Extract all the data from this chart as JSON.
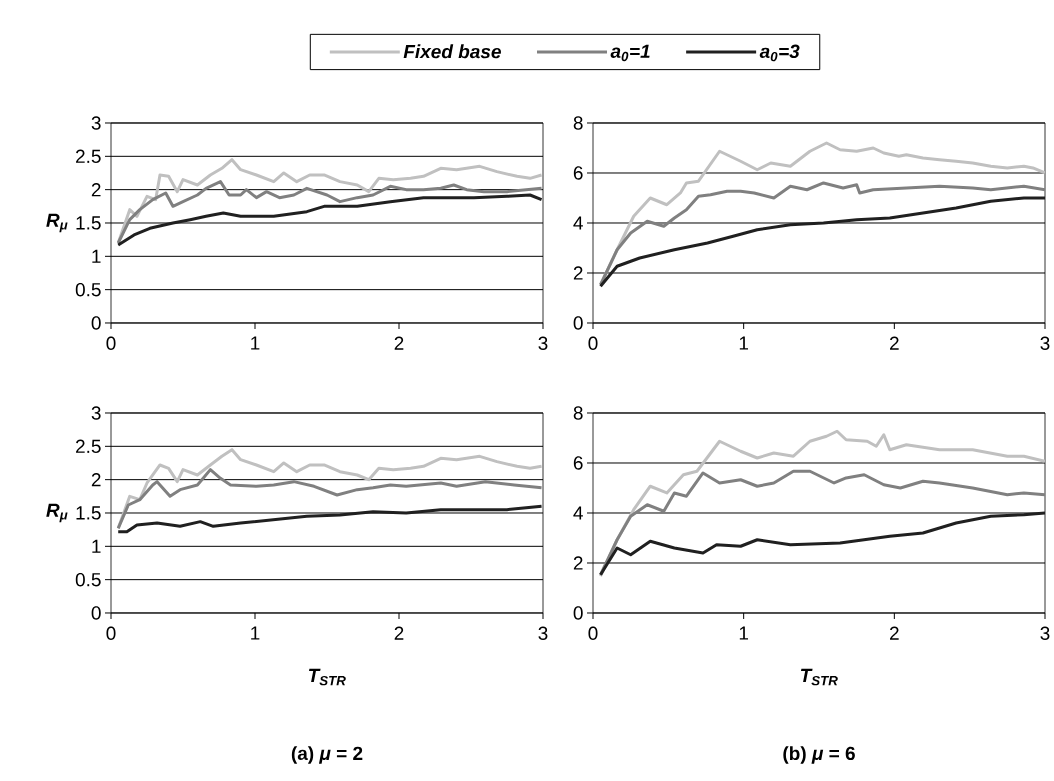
{
  "chart_data": [
    {
      "type": "line",
      "ylabel": "R$_{μ}$",
      "xlim": [
        0,
        3
      ],
      "ylim": [
        0,
        3
      ],
      "xticks": [
        0,
        1,
        2,
        3
      ],
      "yticks": [
        0,
        0.5,
        1,
        1.5,
        2,
        2.5,
        3
      ],
      "grid": "y",
      "legend": "top",
      "series": [
        {
          "name": "Fixed base",
          "color": "#c0c0c0",
          "x": [
            0.05,
            0.13,
            0.18,
            0.25,
            0.31,
            0.34,
            0.4,
            0.46,
            0.5,
            0.6,
            0.69,
            0.77,
            0.84,
            0.9,
            1.01,
            1.13,
            1.2,
            1.29,
            1.38,
            1.48,
            1.59,
            1.71,
            1.79,
            1.86,
            1.96,
            2.08,
            2.17,
            2.29,
            2.4,
            2.56,
            2.68,
            2.82,
            2.91,
            2.99
          ],
          "values": [
            1.2,
            1.7,
            1.6,
            1.9,
            1.85,
            2.22,
            2.2,
            1.97,
            2.15,
            2.07,
            2.22,
            2.32,
            2.45,
            2.3,
            2.22,
            2.12,
            2.25,
            2.12,
            2.22,
            2.22,
            2.12,
            2.07,
            1.97,
            2.17,
            2.15,
            2.17,
            2.2,
            2.32,
            2.3,
            2.35,
            2.27,
            2.2,
            2.17,
            2.22
          ]
        },
        {
          "name": "a$_{0}$=1",
          "color": "#808080",
          "x": [
            0.05,
            0.13,
            0.2,
            0.29,
            0.38,
            0.43,
            0.5,
            0.6,
            0.66,
            0.76,
            0.82,
            0.9,
            0.94,
            1.01,
            1.08,
            1.17,
            1.27,
            1.36,
            1.5,
            1.59,
            1.71,
            1.82,
            1.94,
            2.05,
            2.17,
            2.29,
            2.38,
            2.47,
            2.59,
            2.75,
            2.99
          ],
          "values": [
            1.2,
            1.55,
            1.7,
            1.85,
            1.95,
            1.75,
            1.82,
            1.92,
            2.02,
            2.12,
            1.92,
            1.92,
            2.0,
            1.88,
            1.97,
            1.88,
            1.92,
            2.02,
            1.92,
            1.82,
            1.88,
            1.92,
            2.05,
            2.0,
            2.0,
            2.02,
            2.07,
            2.0,
            1.97,
            1.97,
            2.02
          ]
        },
        {
          "name": "a$_{0}$=3",
          "color": "#202020",
          "x": [
            0.05,
            0.16,
            0.27,
            0.43,
            0.55,
            0.66,
            0.78,
            0.9,
            1.13,
            1.36,
            1.48,
            1.71,
            1.94,
            2.17,
            2.52,
            2.75,
            2.91,
            2.99
          ],
          "values": [
            1.17,
            1.32,
            1.42,
            1.5,
            1.55,
            1.6,
            1.65,
            1.6,
            1.6,
            1.67,
            1.75,
            1.75,
            1.82,
            1.88,
            1.88,
            1.9,
            1.92,
            1.85
          ]
        }
      ]
    },
    {
      "type": "line",
      "xlim": [
        0,
        3
      ],
      "ylim": [
        0,
        8
      ],
      "xticks": [
        0,
        1,
        2,
        3
      ],
      "yticks": [
        0,
        2,
        4,
        6,
        8
      ],
      "grid": "y",
      "series": [
        {
          "color": "#c0c0c0",
          "x": [
            0.05,
            0.16,
            0.27,
            0.38,
            0.49,
            0.58,
            0.62,
            0.7,
            0.84,
            0.98,
            1.09,
            1.18,
            1.31,
            1.44,
            1.55,
            1.64,
            1.75,
            1.86,
            1.93,
            2.03,
            2.08,
            2.19,
            2.3,
            2.41,
            2.52,
            2.64,
            2.75,
            2.86,
            2.92,
            3.0
          ],
          "values": [
            1.53,
            2.93,
            4.27,
            5.0,
            4.73,
            5.2,
            5.6,
            5.67,
            6.87,
            6.47,
            6.13,
            6.4,
            6.27,
            6.87,
            7.2,
            6.93,
            6.87,
            7.0,
            6.8,
            6.67,
            6.73,
            6.6,
            6.53,
            6.47,
            6.4,
            6.27,
            6.2,
            6.27,
            6.2,
            6.0
          ]
        },
        {
          "color": "#808080",
          "x": [
            0.05,
            0.16,
            0.25,
            0.36,
            0.47,
            0.54,
            0.62,
            0.7,
            0.78,
            0.89,
            0.98,
            1.07,
            1.2,
            1.31,
            1.42,
            1.53,
            1.66,
            1.75,
            1.77,
            1.86,
            2.08,
            2.3,
            2.52,
            2.64,
            2.86,
            3.0
          ],
          "values": [
            1.53,
            2.93,
            3.6,
            4.07,
            3.87,
            4.2,
            4.53,
            5.07,
            5.13,
            5.27,
            5.27,
            5.2,
            5.0,
            5.47,
            5.33,
            5.6,
            5.4,
            5.53,
            5.2,
            5.33,
            5.4,
            5.47,
            5.4,
            5.33,
            5.47,
            5.33
          ]
        },
        {
          "color": "#202020",
          "x": [
            0.05,
            0.16,
            0.31,
            0.54,
            0.76,
            0.93,
            1.09,
            1.31,
            1.53,
            1.75,
            1.97,
            2.19,
            2.41,
            2.64,
            2.86,
            3.0
          ],
          "values": [
            1.47,
            2.27,
            2.6,
            2.93,
            3.2,
            3.47,
            3.73,
            3.93,
            4.0,
            4.13,
            4.2,
            4.4,
            4.6,
            4.87,
            5.0,
            5.0
          ]
        }
      ]
    },
    {
      "type": "line",
      "ylabel": "R$_{μ}$",
      "xlabel": "T$_{STR}$",
      "annotations": [
        "(a) *μ* = 2"
      ],
      "xlim": [
        0,
        3
      ],
      "ylim": [
        0,
        3
      ],
      "xticks": [
        0,
        1,
        2,
        3
      ],
      "yticks": [
        0,
        0.5,
        1,
        1.5,
        2,
        2.5,
        3
      ],
      "grid": "y",
      "series": [
        {
          "color": "#c0c0c0",
          "x": [
            0.05,
            0.13,
            0.2,
            0.25,
            0.34,
            0.4,
            0.46,
            0.5,
            0.6,
            0.69,
            0.77,
            0.84,
            0.9,
            1.01,
            1.13,
            1.2,
            1.29,
            1.38,
            1.48,
            1.59,
            1.71,
            1.79,
            1.86,
            1.96,
            2.08,
            2.17,
            2.29,
            2.4,
            2.56,
            2.68,
            2.82,
            2.91,
            2.99
          ],
          "values": [
            1.27,
            1.75,
            1.7,
            1.95,
            2.22,
            2.17,
            1.97,
            2.15,
            2.07,
            2.22,
            2.35,
            2.45,
            2.3,
            2.22,
            2.12,
            2.25,
            2.12,
            2.22,
            2.22,
            2.12,
            2.07,
            2.0,
            2.17,
            2.15,
            2.17,
            2.2,
            2.32,
            2.3,
            2.35,
            2.27,
            2.2,
            2.17,
            2.2
          ]
        },
        {
          "color": "#808080",
          "x": [
            0.05,
            0.12,
            0.2,
            0.29,
            0.32,
            0.41,
            0.48,
            0.6,
            0.64,
            0.69,
            0.76,
            0.83,
            1.01,
            1.13,
            1.27,
            1.41,
            1.57,
            1.71,
            1.82,
            1.94,
            2.05,
            2.29,
            2.4,
            2.6,
            2.8,
            2.99
          ],
          "values": [
            1.27,
            1.62,
            1.7,
            1.92,
            1.97,
            1.75,
            1.85,
            1.92,
            2.02,
            2.15,
            2.02,
            1.92,
            1.9,
            1.92,
            1.97,
            1.9,
            1.77,
            1.85,
            1.88,
            1.92,
            1.9,
            1.95,
            1.9,
            1.97,
            1.92,
            1.88
          ]
        },
        {
          "color": "#202020",
          "x": [
            0.05,
            0.11,
            0.18,
            0.32,
            0.48,
            0.62,
            0.71,
            0.9,
            1.13,
            1.36,
            1.59,
            1.82,
            2.05,
            2.29,
            2.52,
            2.75,
            2.99
          ],
          "values": [
            1.22,
            1.22,
            1.32,
            1.35,
            1.3,
            1.37,
            1.3,
            1.35,
            1.4,
            1.45,
            1.47,
            1.52,
            1.5,
            1.55,
            1.55,
            1.55,
            1.6
          ]
        }
      ]
    },
    {
      "type": "line",
      "xlabel": "T$_{STR}$",
      "annotations": [
        "(b) *μ* = 6"
      ],
      "xlim": [
        0,
        3
      ],
      "ylim": [
        0,
        8
      ],
      "xticks": [
        0,
        1,
        2,
        3
      ],
      "yticks": [
        0,
        2,
        4,
        6,
        8
      ],
      "grid": "y",
      "series": [
        {
          "color": "#c0c0c0",
          "x": [
            0.05,
            0.16,
            0.27,
            0.38,
            0.49,
            0.6,
            0.69,
            0.84,
            0.98,
            1.09,
            1.2,
            1.33,
            1.44,
            1.55,
            1.62,
            1.68,
            1.82,
            1.88,
            1.93,
            1.97,
            2.08,
            2.3,
            2.52,
            2.75,
            2.86,
            3.0
          ],
          "values": [
            1.47,
            2.93,
            4.13,
            5.07,
            4.8,
            5.53,
            5.67,
            6.87,
            6.47,
            6.2,
            6.4,
            6.27,
            6.87,
            7.07,
            7.27,
            6.93,
            6.87,
            6.67,
            7.13,
            6.53,
            6.73,
            6.53,
            6.53,
            6.27,
            6.27,
            6.07
          ]
        },
        {
          "color": "#808080",
          "x": [
            0.05,
            0.16,
            0.25,
            0.36,
            0.47,
            0.54,
            0.62,
            0.73,
            0.84,
            0.98,
            1.09,
            1.2,
            1.33,
            1.44,
            1.6,
            1.68,
            1.8,
            1.93,
            2.04,
            2.19,
            2.3,
            2.52,
            2.75,
            2.86,
            3.0
          ],
          "values": [
            1.53,
            2.93,
            3.87,
            4.33,
            4.07,
            4.8,
            4.67,
            5.6,
            5.2,
            5.33,
            5.07,
            5.2,
            5.67,
            5.67,
            5.2,
            5.4,
            5.53,
            5.13,
            5.0,
            5.27,
            5.2,
            5.0,
            4.73,
            4.8,
            4.73
          ]
        },
        {
          "color": "#202020",
          "x": [
            0.05,
            0.16,
            0.25,
            0.38,
            0.54,
            0.73,
            0.82,
            0.98,
            1.09,
            1.31,
            1.64,
            1.97,
            2.19,
            2.41,
            2.64,
            2.86,
            3.0
          ],
          "values": [
            1.53,
            2.6,
            2.33,
            2.87,
            2.6,
            2.4,
            2.73,
            2.67,
            2.93,
            2.73,
            2.8,
            3.07,
            3.2,
            3.6,
            3.87,
            3.93,
            4.0
          ]
        }
      ]
    }
  ]
}
